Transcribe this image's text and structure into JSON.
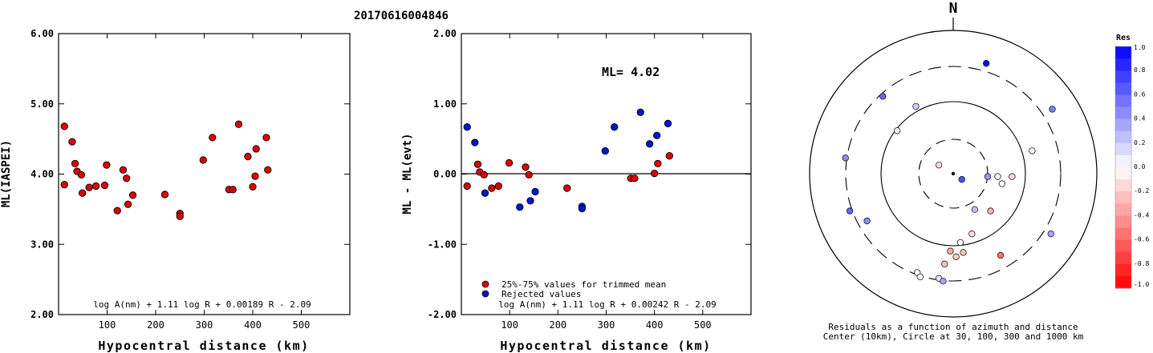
{
  "title": "20170616004846",
  "chart_data": [
    {
      "type": "scatter",
      "id": "left",
      "ylabel": "ML(IASPEI)",
      "xlabel": "Hypocentral distance (km)",
      "xlim": [
        0,
        600
      ],
      "ylim": [
        2.0,
        6.0
      ],
      "xticks": [
        100,
        200,
        300,
        400,
        500
      ],
      "yticks": [
        2.0,
        3.0,
        4.0,
        5.0,
        6.0
      ],
      "ytick_labels": [
        "2.00",
        "3.00",
        "4.00",
        "5.00",
        "6.00"
      ],
      "formula": "log A(nm) + 1.11 log R + 0.00189 R - 2.09",
      "points": [
        {
          "x": 12,
          "y": 4.68
        },
        {
          "x": 12,
          "y": 3.85
        },
        {
          "x": 28,
          "y": 4.46
        },
        {
          "x": 34,
          "y": 4.15
        },
        {
          "x": 38,
          "y": 4.04
        },
        {
          "x": 47,
          "y": 3.99
        },
        {
          "x": 49,
          "y": 3.73
        },
        {
          "x": 63,
          "y": 3.81
        },
        {
          "x": 77,
          "y": 3.83
        },
        {
          "x": 95,
          "y": 3.84
        },
        {
          "x": 99,
          "y": 4.13
        },
        {
          "x": 121,
          "y": 3.48
        },
        {
          "x": 133,
          "y": 4.06
        },
        {
          "x": 140,
          "y": 3.94
        },
        {
          "x": 143,
          "y": 3.57
        },
        {
          "x": 153,
          "y": 3.7
        },
        {
          "x": 219,
          "y": 3.71
        },
        {
          "x": 250,
          "y": 3.44
        },
        {
          "x": 250,
          "y": 3.4
        },
        {
          "x": 298,
          "y": 4.2
        },
        {
          "x": 317,
          "y": 4.52
        },
        {
          "x": 351,
          "y": 3.78
        },
        {
          "x": 359,
          "y": 3.78
        },
        {
          "x": 371,
          "y": 4.71
        },
        {
          "x": 390,
          "y": 4.25
        },
        {
          "x": 400,
          "y": 3.82
        },
        {
          "x": 405,
          "y": 3.97
        },
        {
          "x": 407,
          "y": 4.36
        },
        {
          "x": 428,
          "y": 4.52
        },
        {
          "x": 431,
          "y": 4.06
        }
      ],
      "point_color": "#dd0000"
    },
    {
      "type": "scatter",
      "id": "middle",
      "ylabel": "ML - ML(evt)",
      "xlabel": "Hypocentral distance (km)",
      "xlim": [
        0,
        600
      ],
      "ylim": [
        -2.0,
        2.0
      ],
      "xticks": [
        100,
        200,
        300,
        400,
        500
      ],
      "yticks": [
        -2.0,
        -1.0,
        0.0,
        1.0,
        2.0
      ],
      "ytick_labels": [
        "-2.00",
        "-1.00",
        "0.00",
        "1.00",
        "2.00"
      ],
      "annotation": "ML= 4.02",
      "formula": "log A(nm) + 1.11 log R + 0.00242 R - 2.09",
      "legend": [
        {
          "label": "25%-75% values for trimmed mean",
          "color": "#dd0000"
        },
        {
          "label": "Rejected values",
          "color": "#0018cc"
        }
      ],
      "series": [
        {
          "color": "#dd0000",
          "points": [
            {
              "x": 12,
              "y": -0.17
            },
            {
              "x": 34,
              "y": 0.14
            },
            {
              "x": 38,
              "y": 0.03
            },
            {
              "x": 47,
              "y": -0.01
            },
            {
              "x": 63,
              "y": -0.2
            },
            {
              "x": 77,
              "y": -0.17
            },
            {
              "x": 99,
              "y": 0.16
            },
            {
              "x": 133,
              "y": 0.1
            },
            {
              "x": 140,
              "y": -0.01
            },
            {
              "x": 219,
              "y": -0.2
            },
            {
              "x": 351,
              "y": -0.06
            },
            {
              "x": 359,
              "y": -0.06
            },
            {
              "x": 400,
              "y": 0.01
            },
            {
              "x": 407,
              "y": 0.15
            },
            {
              "x": 431,
              "y": 0.26
            }
          ]
        },
        {
          "color": "#0018cc",
          "points": [
            {
              "x": 12,
              "y": 0.67
            },
            {
              "x": 28,
              "y": 0.45
            },
            {
              "x": 49,
              "y": -0.27
            },
            {
              "x": 121,
              "y": -0.47
            },
            {
              "x": 143,
              "y": -0.38
            },
            {
              "x": 153,
              "y": -0.25
            },
            {
              "x": 250,
              "y": -0.46
            },
            {
              "x": 250,
              "y": -0.49
            },
            {
              "x": 298,
              "y": 0.33
            },
            {
              "x": 317,
              "y": 0.67
            },
            {
              "x": 371,
              "y": 0.88
            },
            {
              "x": 390,
              "y": 0.43
            },
            {
              "x": 405,
              "y": 0.55
            },
            {
              "x": 428,
              "y": 0.72
            }
          ]
        }
      ]
    },
    {
      "type": "scatter",
      "id": "polar",
      "north_label": "N",
      "caption_line1": "Residuals as a function of azimuth and distance",
      "caption_line2": "Center (10km), Circle at 30, 100, 300 and 1000 km",
      "points": [
        {
          "dx": 0.23,
          "dy": -0.77,
          "res": 0.95
        },
        {
          "dx": -0.49,
          "dy": -0.54,
          "res": 0.6
        },
        {
          "dx": 0.69,
          "dy": -0.45,
          "res": 0.5
        },
        {
          "dx": -0.26,
          "dy": -0.47,
          "res": 0.2
        },
        {
          "dx": -0.39,
          "dy": -0.3,
          "res": 0.05
        },
        {
          "dx": 0.55,
          "dy": -0.16,
          "res": -0.05
        },
        {
          "dx": -0.75,
          "dy": -0.11,
          "res": 0.45
        },
        {
          "dx": -0.1,
          "dy": -0.06,
          "res": -0.15
        },
        {
          "dx": 0.24,
          "dy": 0.02,
          "res": 0.4
        },
        {
          "dx": 0.31,
          "dy": 0.02,
          "res": -0.05
        },
        {
          "dx": 0.41,
          "dy": 0.02,
          "res": -0.15
        },
        {
          "dx": 0.06,
          "dy": 0.04,
          "res": 0.7
        },
        {
          "dx": 0.34,
          "dy": 0.07,
          "res": 0.0
        },
        {
          "dx": -0.72,
          "dy": 0.26,
          "res": 0.6
        },
        {
          "dx": 0.15,
          "dy": 0.25,
          "res": 0.25
        },
        {
          "dx": 0.26,
          "dy": 0.26,
          "res": -0.3
        },
        {
          "dx": -0.6,
          "dy": 0.33,
          "res": 0.45
        },
        {
          "dx": 0.13,
          "dy": 0.42,
          "res": -0.15
        },
        {
          "dx": 0.68,
          "dy": 0.42,
          "res": 0.35
        },
        {
          "dx": 0.05,
          "dy": 0.48,
          "res": 0.0
        },
        {
          "dx": -0.02,
          "dy": 0.54,
          "res": -0.35
        },
        {
          "dx": 0.07,
          "dy": 0.55,
          "res": -0.25
        },
        {
          "dx": 0.02,
          "dy": 0.58,
          "res": -0.2
        },
        {
          "dx": 0.33,
          "dy": 0.57,
          "res": -0.55
        },
        {
          "dx": -0.06,
          "dy": 0.63,
          "res": -0.25
        },
        {
          "dx": -0.25,
          "dy": 0.69,
          "res": 0.0
        },
        {
          "dx": -0.23,
          "dy": 0.72,
          "res": 0.0
        },
        {
          "dx": -0.1,
          "dy": 0.73,
          "res": 0.1
        },
        {
          "dx": -0.07,
          "dy": 0.75,
          "res": 0.35
        }
      ]
    },
    {
      "type": "heatmap",
      "id": "colorbar",
      "title": "Res",
      "ticks": [
        1.0,
        0.8,
        0.6,
        0.4,
        0.2,
        0.0,
        -0.2,
        -0.4,
        -0.6,
        -0.8,
        -1.0
      ],
      "tick_labels": [
        "1.0",
        "0.8",
        "0.6",
        "0.4",
        "0.2",
        "0.0",
        "-0.2",
        "-0.4",
        "-0.6",
        "-0.8",
        "-1.0"
      ],
      "range": [
        -1.0,
        1.0
      ],
      "positive_color": "#0000ff",
      "negative_color": "#ff0000"
    }
  ]
}
